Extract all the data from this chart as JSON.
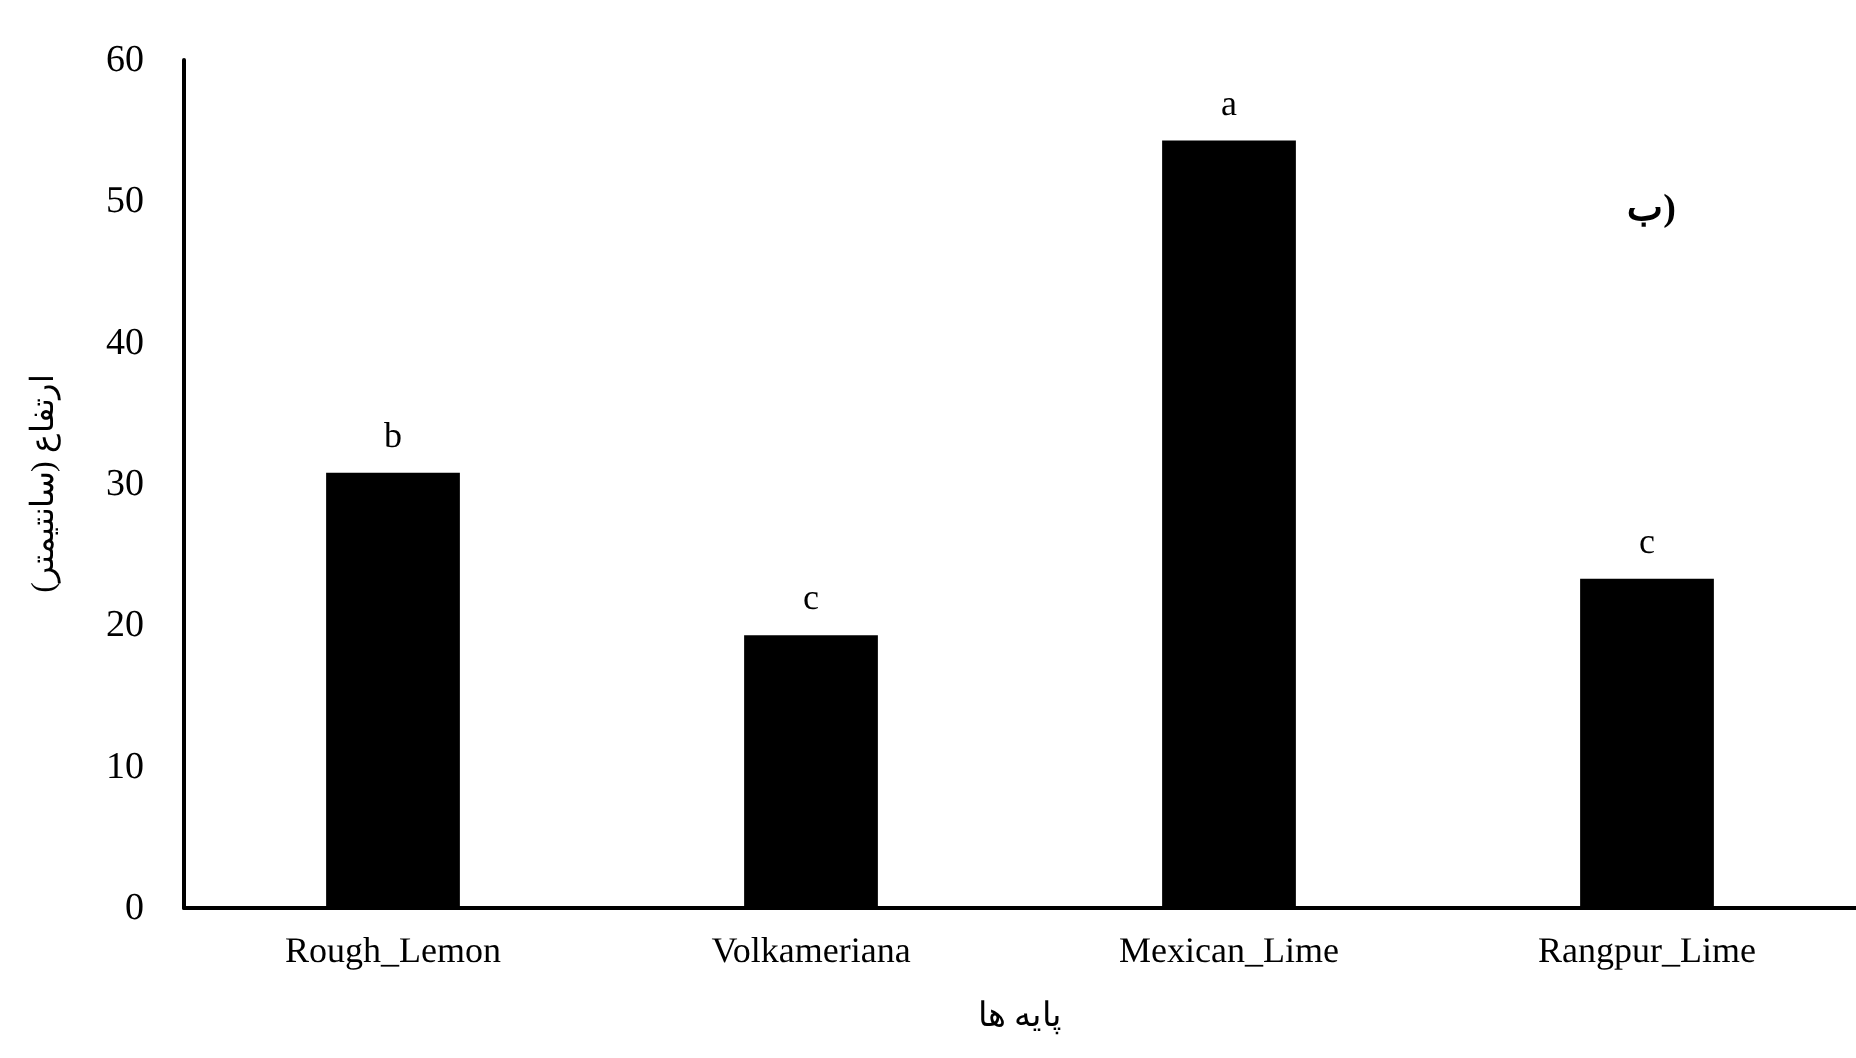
{
  "chart_data": {
    "type": "bar",
    "xlabel": "پایه ها",
    "ylabel": "ارتفاع (سانتیمتر)",
    "categories": [
      "Rough_Lemon",
      "Volkameriana",
      "Mexican_Lime",
      "Rangpur_Lime"
    ],
    "values": [
      30.8,
      19.3,
      54.3,
      23.3
    ],
    "color": "#000000",
    "value_labels": [
      "b",
      "c",
      "a",
      "c"
    ],
    "ylim": [
      0,
      60
    ],
    "yticks": [
      0,
      10,
      20,
      30,
      40,
      50,
      60
    ],
    "annotations": [
      "ب)"
    ]
  }
}
